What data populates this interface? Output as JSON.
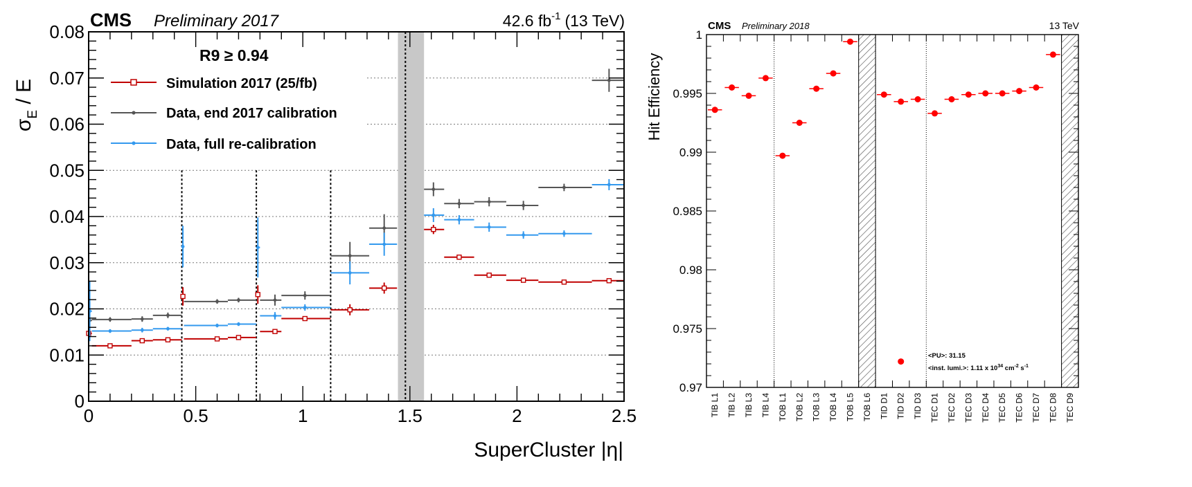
{
  "chart_data": [
    {
      "type": "scatter",
      "experiment": "CMS",
      "status": "Preliminary 2017",
      "lumi_value": "42.6 fb",
      "lumi_exp": "-1",
      "energy": "(13 TeV)",
      "ylabel_main": "σ",
      "ylabel_sub": "E",
      "ylabel_rest": " / E",
      "xlabel": "SuperCluster |η|",
      "xlim": [
        0,
        2.5
      ],
      "ylim": [
        0,
        0.08
      ],
      "x_ticks": [
        "0",
        "0.5",
        "1",
        "1.5",
        "2",
        "2.5"
      ],
      "y_ticks": [
        "0",
        "0.01",
        "0.02",
        "0.03",
        "0.04",
        "0.05",
        "0.06",
        "0.07",
        "0.08"
      ],
      "legend_title": "R9 ≥ 0.94",
      "legend_position": "top-left",
      "grid": "horizontal",
      "boundaries": [
        0.435,
        0.783,
        1.13
      ],
      "gap_band": [
        1.4442,
        1.566
      ],
      "gap_line": 1.479,
      "series": [
        {
          "name": "Simulation 2017 (25/fb)",
          "color": "#c00000",
          "marker": "open-square",
          "points": [
            {
              "x": 0.0,
              "xlo": 0.0,
              "xhi": 0.015,
              "y": 0.0147,
              "e": 0.0035
            },
            {
              "x": 0.1,
              "xlo": 0.015,
              "xhi": 0.2,
              "y": 0.012,
              "e": 0.0004
            },
            {
              "x": 0.25,
              "xlo": 0.2,
              "xhi": 0.3,
              "y": 0.0131,
              "e": 0.0003
            },
            {
              "x": 0.37,
              "xlo": 0.3,
              "xhi": 0.435,
              "y": 0.0133,
              "e": 0.0003
            },
            {
              "x": 0.44,
              "xlo": 0.435,
              "xhi": 0.445,
              "y": 0.0227,
              "e": 0.002
            },
            {
              "x": 0.6,
              "xlo": 0.445,
              "xhi": 0.65,
              "y": 0.0135,
              "e": 0.0003
            },
            {
              "x": 0.7,
              "xlo": 0.65,
              "xhi": 0.783,
              "y": 0.0138,
              "e": 0.0003
            },
            {
              "x": 0.79,
              "xlo": 0.783,
              "xhi": 0.8,
              "y": 0.0231,
              "e": 0.002
            },
            {
              "x": 0.87,
              "xlo": 0.8,
              "xhi": 0.9,
              "y": 0.0151,
              "e": 0.0004
            },
            {
              "x": 1.01,
              "xlo": 0.9,
              "xhi": 1.13,
              "y": 0.0179,
              "e": 0.0004
            },
            {
              "x": 1.22,
              "xlo": 1.13,
              "xhi": 1.31,
              "y": 0.0198,
              "e": 0.0012
            },
            {
              "x": 1.38,
              "xlo": 1.31,
              "xhi": 1.44,
              "y": 0.0245,
              "e": 0.0012
            },
            {
              "x": 1.61,
              "xlo": 1.566,
              "xhi": 1.66,
              "y": 0.0372,
              "e": 0.001
            },
            {
              "x": 1.73,
              "xlo": 1.66,
              "xhi": 1.8,
              "y": 0.0312,
              "e": 0.0005
            },
            {
              "x": 1.87,
              "xlo": 1.8,
              "xhi": 1.95,
              "y": 0.0273,
              "e": 0.0004
            },
            {
              "x": 2.03,
              "xlo": 1.95,
              "xhi": 2.1,
              "y": 0.0262,
              "e": 0.0004
            },
            {
              "x": 2.22,
              "xlo": 2.1,
              "xhi": 2.35,
              "y": 0.0258,
              "e": 0.0004
            },
            {
              "x": 2.43,
              "xlo": 2.35,
              "xhi": 2.5,
              "y": 0.0261,
              "e": 0.0004
            }
          ]
        },
        {
          "name": "Data, end 2017 calibration",
          "color": "#555555",
          "marker": "dot",
          "points": [
            {
              "x": 0.005,
              "xlo": 0.0,
              "xhi": 0.015,
              "y": 0.0175,
              "e": 0.004
            },
            {
              "x": 0.1,
              "xlo": 0.015,
              "xhi": 0.2,
              "y": 0.0177,
              "e": 0.0005
            },
            {
              "x": 0.25,
              "xlo": 0.2,
              "xhi": 0.3,
              "y": 0.0178,
              "e": 0.0006
            },
            {
              "x": 0.37,
              "xlo": 0.3,
              "xhi": 0.435,
              "y": 0.0186,
              "e": 0.0006
            },
            {
              "x": 0.6,
              "xlo": 0.445,
              "xhi": 0.65,
              "y": 0.0216,
              "e": 0.0005
            },
            {
              "x": 0.7,
              "xlo": 0.65,
              "xhi": 0.783,
              "y": 0.0219,
              "e": 0.0005
            },
            {
              "x": 0.87,
              "xlo": 0.8,
              "xhi": 0.9,
              "y": 0.0219,
              "e": 0.0012
            },
            {
              "x": 1.01,
              "xlo": 0.9,
              "xhi": 1.13,
              "y": 0.0229,
              "e": 0.0009
            },
            {
              "x": 1.22,
              "xlo": 1.13,
              "xhi": 1.31,
              "y": 0.0315,
              "e": 0.003
            },
            {
              "x": 1.38,
              "xlo": 1.31,
              "xhi": 1.44,
              "y": 0.0375,
              "e": 0.003
            },
            {
              "x": 1.61,
              "xlo": 1.566,
              "xhi": 1.66,
              "y": 0.0459,
              "e": 0.0015
            },
            {
              "x": 1.73,
              "xlo": 1.66,
              "xhi": 1.8,
              "y": 0.0428,
              "e": 0.001
            },
            {
              "x": 1.87,
              "xlo": 1.8,
              "xhi": 1.95,
              "y": 0.0432,
              "e": 0.001
            },
            {
              "x": 2.03,
              "xlo": 1.95,
              "xhi": 2.1,
              "y": 0.0424,
              "e": 0.001
            },
            {
              "x": 2.22,
              "xlo": 2.1,
              "xhi": 2.35,
              "y": 0.0463,
              "e": 0.0008
            },
            {
              "x": 2.43,
              "xlo": 2.35,
              "xhi": 2.5,
              "y": 0.0695,
              "e": 0.0025
            }
          ]
        },
        {
          "name": "Data, full re-calibration",
          "color": "#3399ee",
          "marker": "dot",
          "points": [
            {
              "x": 0.005,
              "xlo": 0.0,
              "xhi": 0.015,
              "y": 0.0195,
              "e": 0.0065
            },
            {
              "x": 0.1,
              "xlo": 0.015,
              "xhi": 0.2,
              "y": 0.0152,
              "e": 0.0004
            },
            {
              "x": 0.25,
              "xlo": 0.2,
              "xhi": 0.3,
              "y": 0.0154,
              "e": 0.0005
            },
            {
              "x": 0.37,
              "xlo": 0.3,
              "xhi": 0.435,
              "y": 0.0157,
              "e": 0.0004
            },
            {
              "x": 0.44,
              "xlo": 0.435,
              "xhi": 0.445,
              "y": 0.0335,
              "e": 0.0045
            },
            {
              "x": 0.6,
              "xlo": 0.445,
              "xhi": 0.65,
              "y": 0.0164,
              "e": 0.0004
            },
            {
              "x": 0.7,
              "xlo": 0.65,
              "xhi": 0.783,
              "y": 0.0167,
              "e": 0.0004
            },
            {
              "x": 0.79,
              "xlo": 0.783,
              "xhi": 0.8,
              "y": 0.0333,
              "e": 0.0065
            },
            {
              "x": 0.87,
              "xlo": 0.8,
              "xhi": 0.9,
              "y": 0.0185,
              "e": 0.0008
            },
            {
              "x": 1.01,
              "xlo": 0.9,
              "xhi": 1.13,
              "y": 0.0203,
              "e": 0.0007
            },
            {
              "x": 1.22,
              "xlo": 1.13,
              "xhi": 1.31,
              "y": 0.0278,
              "e": 0.0025
            },
            {
              "x": 1.38,
              "xlo": 1.31,
              "xhi": 1.44,
              "y": 0.034,
              "e": 0.0025
            },
            {
              "x": 1.61,
              "xlo": 1.566,
              "xhi": 1.66,
              "y": 0.0403,
              "e": 0.0015
            },
            {
              "x": 1.73,
              "xlo": 1.66,
              "xhi": 1.8,
              "y": 0.0393,
              "e": 0.001
            },
            {
              "x": 1.87,
              "xlo": 1.8,
              "xhi": 1.95,
              "y": 0.0377,
              "e": 0.001
            },
            {
              "x": 2.03,
              "xlo": 1.95,
              "xhi": 2.1,
              "y": 0.036,
              "e": 0.0008
            },
            {
              "x": 2.22,
              "xlo": 2.1,
              "xhi": 2.35,
              "y": 0.0363,
              "e": 0.0007
            },
            {
              "x": 2.43,
              "xlo": 2.35,
              "xhi": 2.5,
              "y": 0.0469,
              "e": 0.0012
            }
          ]
        }
      ]
    },
    {
      "type": "scatter",
      "experiment": "CMS",
      "status": "Preliminary 2018",
      "energy": "13 TeV",
      "ylabel": "Hit Efficiency",
      "ylim": [
        0.97,
        1.0
      ],
      "y_ticks": [
        "0.97",
        "0.975",
        "0.98",
        "0.985",
        "0.99",
        "0.995",
        "1"
      ],
      "categories": [
        "TIB L1",
        "TIB L2",
        "TIB L3",
        "TIB L4",
        "TOB L1",
        "TOB L2",
        "TOB L3",
        "TOB L4",
        "TOB L5",
        "TOB L6",
        "TID D1",
        "TID D2",
        "TID D3",
        "TEC D1",
        "TEC D2",
        "TEC D3",
        "TEC D4",
        "TEC D5",
        "TEC D6",
        "TEC D7",
        "TEC D8",
        "TEC D9"
      ],
      "values": [
        0.9936,
        0.9955,
        0.9948,
        0.9963,
        0.9897,
        0.9925,
        0.9954,
        0.9967,
        0.9994,
        null,
        0.9949,
        0.9943,
        0.9945,
        0.9933,
        0.9945,
        0.9949,
        0.995,
        0.995,
        0.9952,
        0.9955,
        0.9983,
        null
      ],
      "extra_point": {
        "category": "TID D2",
        "value": 0.9722
      },
      "excluded": [
        "TOB L6",
        "TEC D9"
      ],
      "separators_after": [
        "TIB L4",
        "TOB L6",
        "TID D3"
      ],
      "marker_color": "#ff0000",
      "annotation_pu": "<PU>: 31.15",
      "annotation_lumi_prefix": "<inst. lumi.>: 1.11 x 10",
      "annotation_lumi_exp": "34",
      "annotation_lumi_unit": " cm",
      "annotation_lumi_unit_exp": "-2",
      "annotation_lumi_s": " s",
      "annotation_lumi_s_exp": "-1"
    }
  ]
}
